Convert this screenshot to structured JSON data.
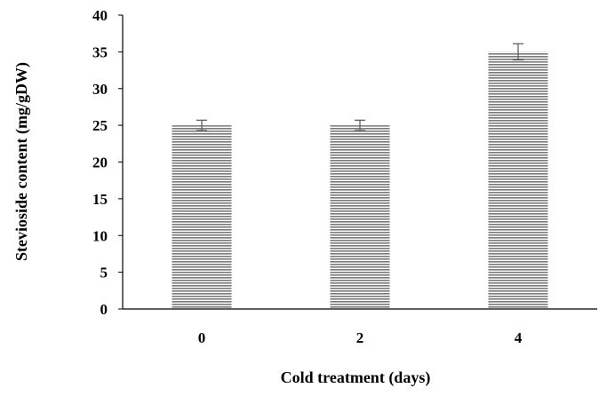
{
  "chart_data": {
    "type": "bar",
    "categories": [
      "0",
      "2",
      "4"
    ],
    "values": [
      25,
      25,
      35
    ],
    "errors": [
      0.7,
      0.7,
      1.1
    ],
    "title": "",
    "xlabel": "Cold treatment (days)",
    "ylabel": "Stevioside content (mg/gDW)",
    "ylim": [
      0,
      40
    ],
    "yticks": [
      "0",
      "5",
      "10",
      "15",
      "20",
      "25",
      "30",
      "35",
      "40"
    ],
    "grid": false,
    "legend": "none",
    "bar_fill": "horizontal-stripes",
    "colors": {
      "bar_stripe_dark": "#7a7a7a",
      "bar_stripe_light": "#ffffff",
      "axis": "#000000",
      "error_bar": "#555555"
    }
  }
}
